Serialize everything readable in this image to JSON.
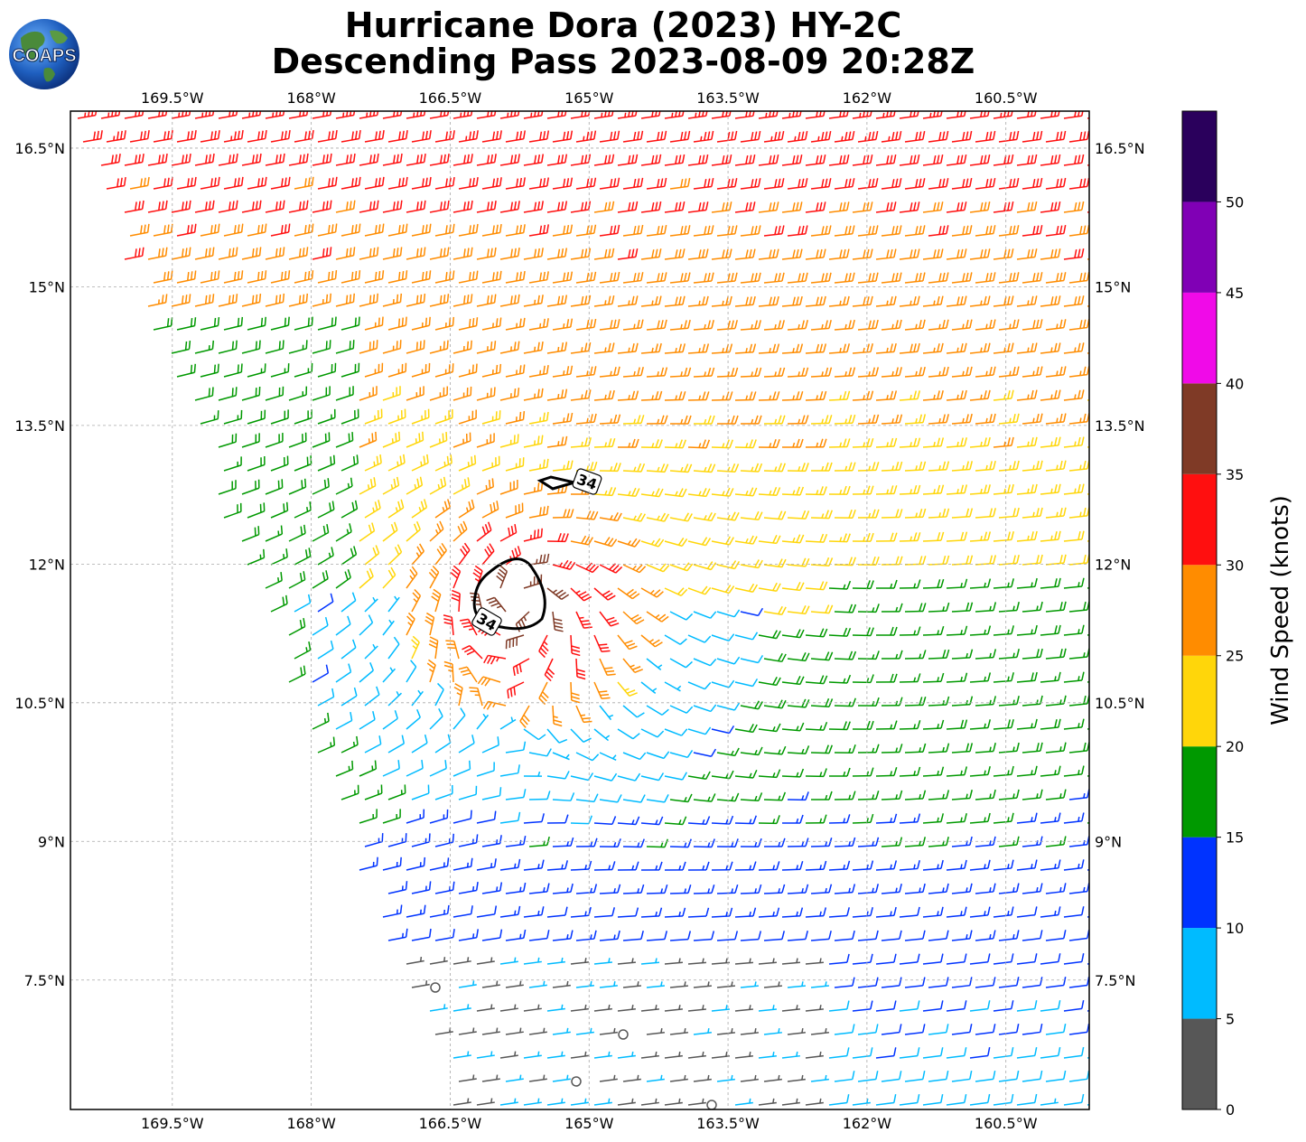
{
  "title": {
    "line1": "Hurricane Dora (2023) HY-2C",
    "line2": "Descending Pass 2023-08-09 20:28Z"
  },
  "logo": {
    "text": "COAPS",
    "icon": "globe-icon"
  },
  "map": {
    "lon_ticks": [
      "169.5°W",
      "168°W",
      "166.5°W",
      "165°W",
      "163.5°W",
      "162°W",
      "160.5°W"
    ],
    "lat_ticks": [
      "16.5°N",
      "15°N",
      "13.5°N",
      "12°N",
      "10.5°N",
      "9°N",
      "7.5°N"
    ],
    "lon_range": [
      -170.6,
      -159.6
    ],
    "lat_range": [
      6.1,
      16.9
    ],
    "grid": true,
    "contour_labels": [
      "34",
      "34"
    ],
    "storm_center": {
      "lon": -165.7,
      "lat": 11.6
    }
  },
  "colorbar": {
    "label": "Wind Speed (knots)",
    "ticks": [
      "0",
      "5",
      "10",
      "15",
      "20",
      "25",
      "30",
      "35",
      "40",
      "45",
      "50"
    ],
    "bins": [
      {
        "min": 0,
        "max": 5,
        "color": "#575757"
      },
      {
        "min": 5,
        "max": 10,
        "color": "#00bbff"
      },
      {
        "min": 10,
        "max": 15,
        "color": "#0033ff"
      },
      {
        "min": 15,
        "max": 20,
        "color": "#009900"
      },
      {
        "min": 20,
        "max": 25,
        "color": "#ffd60a"
      },
      {
        "min": 25,
        "max": 30,
        "color": "#ff8c00"
      },
      {
        "min": 30,
        "max": 35,
        "color": "#ff0f0f"
      },
      {
        "min": 35,
        "max": 40,
        "color": "#7f3a26"
      },
      {
        "min": 40,
        "max": 45,
        "color": "#f00ae8"
      },
      {
        "min": 45,
        "max": 50,
        "color": "#8000b5"
      },
      {
        "min": 50,
        "max": 55,
        "color": "#2a005c"
      }
    ]
  }
}
